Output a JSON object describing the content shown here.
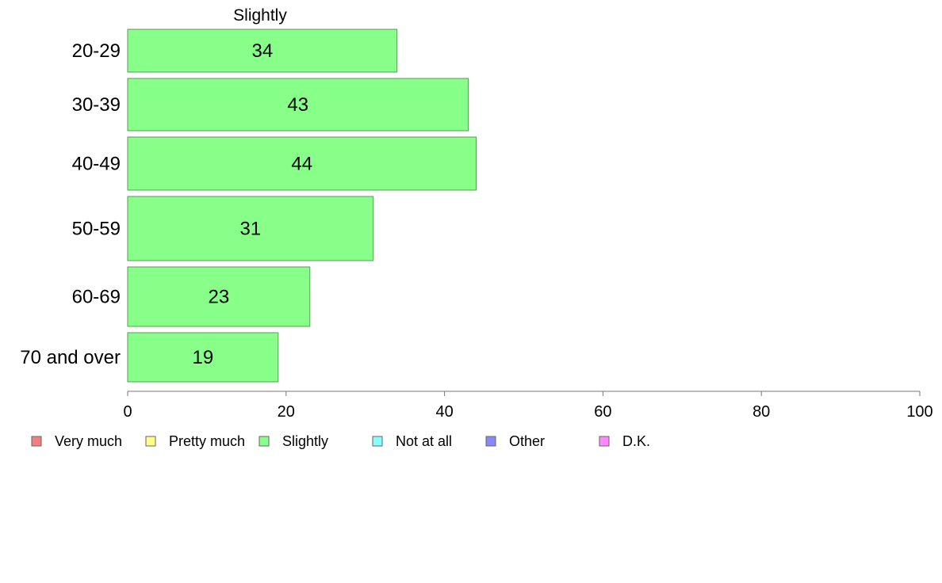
{
  "chart_data": {
    "type": "bar",
    "orientation": "horizontal",
    "title": "Slightly",
    "xlabel": "",
    "ylabel": "",
    "xlim": [
      0,
      100
    ],
    "x_ticks": [
      0,
      20,
      40,
      60,
      80,
      100
    ],
    "categories": [
      "20-29",
      "30-39",
      "40-49",
      "50-59",
      "60-69",
      "70 and over"
    ],
    "series": [
      {
        "name": "Slightly",
        "values": [
          34,
          43,
          44,
          31,
          23,
          19
        ],
        "color": "#88ff88"
      }
    ],
    "legend": {
      "placement": "bottom",
      "entries": [
        {
          "label": "Very much",
          "color": "#f08080"
        },
        {
          "label": "Pretty much",
          "color": "#ffff88"
        },
        {
          "label": "Slightly",
          "color": "#88ff88"
        },
        {
          "label": "Not at all",
          "color": "#88ffff"
        },
        {
          "label": "Other",
          "color": "#8888ff"
        },
        {
          "label": "D.K.",
          "color": "#ff88ff"
        }
      ]
    },
    "grid": false
  }
}
